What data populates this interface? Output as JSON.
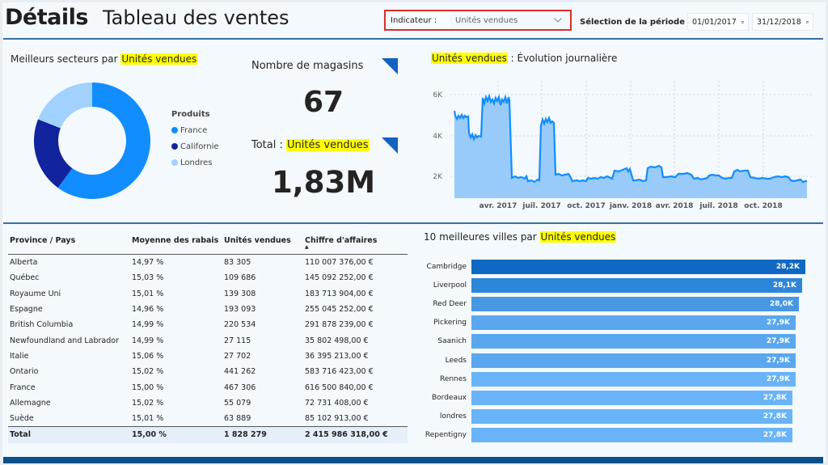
{
  "header": {
    "title": "Détails",
    "subtitle": "Tableau des ventes",
    "indicator_label": "Indicateur :",
    "indicator_value": "Unités vendues",
    "period_label": "Sélection de la période :",
    "date_start": "01/01/2017",
    "date_end": "31/12/2018"
  },
  "donut": {
    "title_prefix": "Meilleurs secteurs par ",
    "title_measure": "Unités vendues",
    "legend_title": "Produits",
    "items": [
      {
        "label": "France",
        "color": "#118dff",
        "share": 0.6
      },
      {
        "label": "Californie",
        "color": "#12239e",
        "share": 0.21
      },
      {
        "label": "Londres",
        "color": "#a0d1ff",
        "share": 0.19
      }
    ]
  },
  "kpis": {
    "stores_label": "Nombre de magasins",
    "stores_value": "67",
    "total_prefix": "Total : ",
    "total_measure": "Unités vendues",
    "total_value": "1,83M"
  },
  "line_chart": {
    "title_measure": "Unités vendues",
    "title_suffix": " : Évolution journalière",
    "y_ticks": [
      "6K",
      "4K",
      "2K"
    ],
    "x_ticks": [
      "avr. 2017",
      "juil. 2017",
      "oct. 2017",
      "janv. 2018",
      "avr. 2018",
      "juil. 2018",
      "oct. 2018"
    ]
  },
  "table": {
    "columns": [
      "Province / Pays",
      "Moyenne des rabais",
      "Unités vendues",
      "Chiffre d'affaires"
    ],
    "sort_indicator": "▲",
    "rows": [
      [
        "Alberta",
        "14,97 %",
        "83 305",
        "110 007 376,00 €"
      ],
      [
        "Québec",
        "15,03 %",
        "109 686",
        "145 092 252,00 €"
      ],
      [
        "Royaume Uni",
        "15,01 %",
        "139 308",
        "183 713 904,00 €"
      ],
      [
        "Espagne",
        "14,96 %",
        "193 093",
        "255 045 252,00 €"
      ],
      [
        "British Columbia",
        "14,99 %",
        "220 534",
        "291 878 239,00 €"
      ],
      [
        "Newfoundland and Labrador",
        "14,99 %",
        "27 115",
        "35 802 498,00 €"
      ],
      [
        "Italie",
        "15,06 %",
        "27 702",
        "36 395 213,00 €"
      ],
      [
        "Ontario",
        "15,02 %",
        "441 262",
        "583 716 423,00 €"
      ],
      [
        "France",
        "15,00 %",
        "467 306",
        "616 500 840,00 €"
      ],
      [
        "Allemagne",
        "15,02 %",
        "55 079",
        "72 731 408,00 €"
      ],
      [
        "Suède",
        "15,01 %",
        "63 889",
        "85 102 913,00 €"
      ]
    ],
    "total": [
      "Total",
      "15,00 %",
      "1 828 279",
      "2 415 986 318,00 €"
    ]
  },
  "bar_chart": {
    "title_prefix": "10 meilleures villes par ",
    "title_measure": "Unités vendues",
    "items": [
      {
        "label": "Cambridge",
        "value": "28,2K",
        "num": 28.2,
        "color": "#1068c4"
      },
      {
        "label": "Liverpool",
        "value": "28,1K",
        "num": 28.1,
        "color": "#2d86d9"
      },
      {
        "label": "Red Deer",
        "value": "28,0K",
        "num": 28.0,
        "color": "#4797e3"
      },
      {
        "label": "Pickering",
        "value": "27,9K",
        "num": 27.9,
        "color": "#5aa7ef"
      },
      {
        "label": "Saanich",
        "value": "27,9K",
        "num": 27.9,
        "color": "#5aa7ef"
      },
      {
        "label": "Leeds",
        "value": "27,9K",
        "num": 27.9,
        "color": "#5aa7ef"
      },
      {
        "label": "Rennes",
        "value": "27,9K",
        "num": 27.9,
        "color": "#69b4f8"
      },
      {
        "label": "Bordeaux",
        "value": "27,8K",
        "num": 27.8,
        "color": "#69b4f8"
      },
      {
        "label": "londres",
        "value": "27,8K",
        "num": 27.8,
        "color": "#69b4f8"
      },
      {
        "label": "Repentigny",
        "value": "27,8K",
        "num": 27.8,
        "color": "#69b4f8"
      }
    ]
  },
  "colors": {
    "accent": "#1462c2",
    "highlight": "#ffff00",
    "divider": "#3b6ea5",
    "footer": "#0c4f8a"
  }
}
